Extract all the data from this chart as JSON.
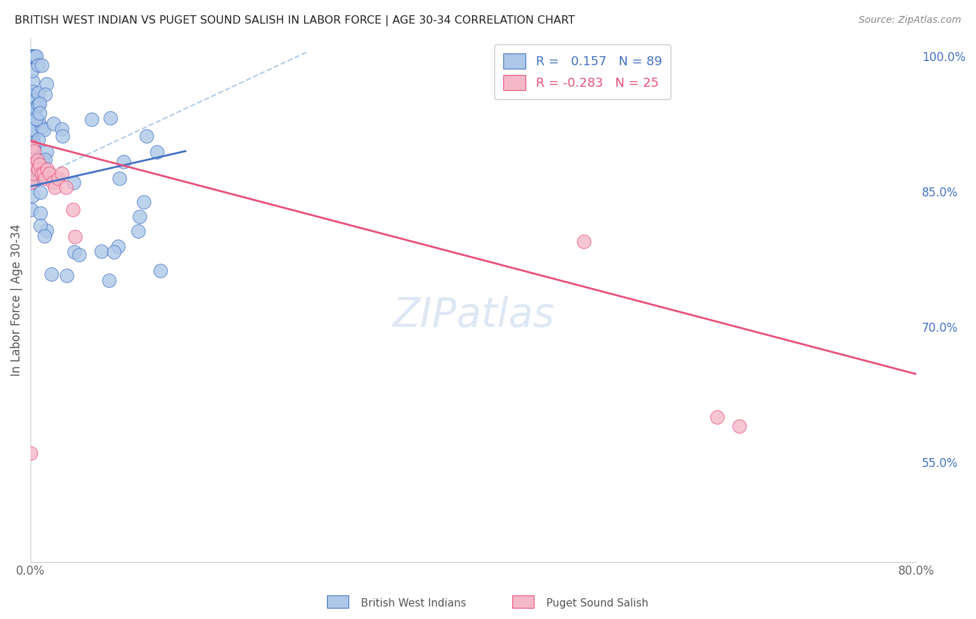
{
  "title": "BRITISH WEST INDIAN VS PUGET SOUND SALISH IN LABOR FORCE | AGE 30-34 CORRELATION CHART",
  "source": "Source: ZipAtlas.com",
  "ylabel": "In Labor Force | Age 30-34",
  "xmin": 0.0,
  "xmax": 0.8,
  "ymin": 0.44,
  "ymax": 1.02,
  "x_ticks": [
    0.0,
    0.1,
    0.2,
    0.3,
    0.4,
    0.5,
    0.6,
    0.7,
    0.8
  ],
  "x_tick_labels": [
    "0.0%",
    "",
    "",
    "",
    "",
    "",
    "",
    "",
    "80.0%"
  ],
  "y_ticks": [
    0.55,
    0.7,
    0.85,
    1.0
  ],
  "y_tick_labels": [
    "55.0%",
    "70.0%",
    "85.0%",
    "100.0%"
  ],
  "legend1_label": "British West Indians",
  "legend2_label": "Puget Sound Salish",
  "r1": 0.157,
  "n1": 89,
  "r2": -0.283,
  "n2": 25,
  "blue_color": "#adc8e8",
  "blue_edge_color": "#4472c4",
  "pink_color": "#f5b8c8",
  "pink_edge_color": "#e8507a",
  "blue_line_color": "#4472c4",
  "pink_line_color": "#e8507a",
  "dashed_line_color": "#b0cce8",
  "grid_color": "#e0e0e0",
  "background_color": "#ffffff",
  "title_color": "#222222",
  "source_color": "#888888",
  "right_tick_color": "#4472c4",
  "watermark_color": "#c8d8ee",
  "blue_trendline_x": [
    0.0,
    0.14
  ],
  "blue_trendline_y": [
    0.856,
    0.895
  ],
  "pink_trendline_x": [
    0.0,
    0.8
  ],
  "pink_trendline_y": [
    0.906,
    0.648
  ],
  "dashed_line_x": [
    0.0,
    0.25
  ],
  "dashed_line_y": [
    0.862,
    1.005
  ]
}
